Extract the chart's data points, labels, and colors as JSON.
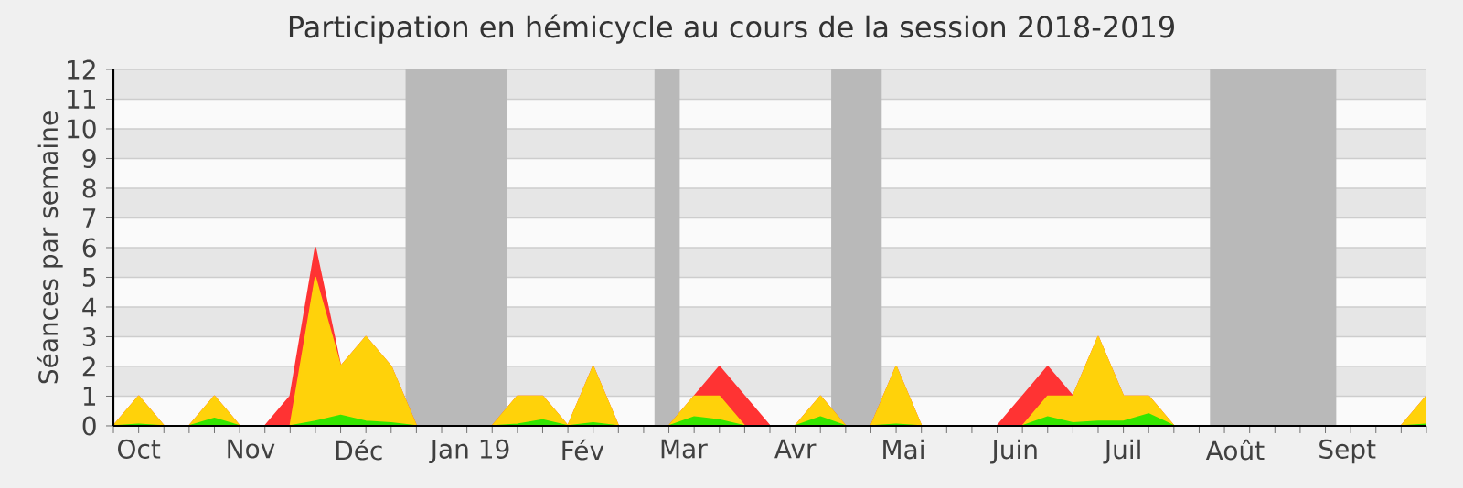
{
  "chart_data": {
    "type": "area",
    "stacked": true,
    "title": "Participation en hémicycle au cours de la session 2018-2019",
    "ylabel": "Séances par semaine",
    "x": [
      "2018-09-24",
      "2018-10-01",
      "2018-10-08",
      "2018-10-15",
      "2018-10-22",
      "2018-10-29",
      "2018-11-05",
      "2018-11-12",
      "2018-11-19",
      "2018-11-26",
      "2018-12-03",
      "2018-12-10",
      "2018-12-17",
      "2018-12-24",
      "2018-12-31",
      "2019-01-07",
      "2019-01-14",
      "2019-01-21",
      "2019-01-28",
      "2019-02-04",
      "2019-02-11",
      "2019-02-18",
      "2019-02-25",
      "2019-03-04",
      "2019-03-11",
      "2019-03-18",
      "2019-03-25",
      "2019-04-01",
      "2019-04-08",
      "2019-04-15",
      "2019-04-22",
      "2019-04-29",
      "2019-05-06",
      "2019-05-13",
      "2019-05-20",
      "2019-05-27",
      "2019-06-03",
      "2019-06-10",
      "2019-06-17",
      "2019-06-24",
      "2019-07-01",
      "2019-07-08",
      "2019-07-15",
      "2019-07-22",
      "2019-07-29",
      "2019-08-05",
      "2019-08-12",
      "2019-08-19",
      "2019-08-26",
      "2019-09-02",
      "2019-09-09",
      "2019-09-16",
      "2019-09-23"
    ],
    "series": [
      {
        "color": "#33e600",
        "values": [
          0,
          0.05,
          0,
          0,
          0.25,
          0,
          0,
          0,
          0.15,
          0.35,
          0.15,
          0.1,
          0,
          0,
          0,
          0,
          0.05,
          0.2,
          0,
          0.1,
          0,
          0,
          0,
          0.3,
          0.2,
          0,
          0,
          0,
          0.3,
          0,
          0,
          0.05,
          0,
          0,
          0,
          0,
          0,
          0.3,
          0.1,
          0.15,
          0.15,
          0.4,
          0,
          0,
          0,
          0,
          0,
          0,
          0,
          0,
          0,
          0,
          0.05
        ]
      },
      {
        "color": "#ffd20a",
        "values": [
          0,
          0.95,
          0,
          0,
          0.75,
          0,
          0,
          0,
          4.85,
          1.65,
          2.85,
          1.9,
          0,
          0,
          0,
          0,
          0.95,
          0.8,
          0,
          1.9,
          0,
          0,
          0,
          0.7,
          0.8,
          0,
          0,
          0,
          0.7,
          0,
          0,
          1.95,
          0,
          0,
          0,
          0,
          0,
          0.7,
          0.9,
          2.85,
          0.85,
          0.6,
          0,
          0,
          0,
          0,
          0,
          0,
          0,
          0,
          0,
          0,
          0.95
        ]
      },
      {
        "color": "#ff3333",
        "values": [
          0,
          0,
          0,
          0,
          0,
          0,
          0,
          1,
          1,
          0,
          0,
          0,
          0,
          0,
          0,
          0,
          0,
          0,
          0,
          0,
          0,
          0,
          0,
          0,
          1,
          1,
          0,
          0,
          0,
          0,
          0,
          0,
          0,
          0,
          0,
          0,
          1,
          1,
          0,
          0,
          0,
          0,
          0,
          0,
          0,
          0,
          0,
          0,
          0,
          0,
          0,
          0,
          0
        ]
      }
    ],
    "xlim": [
      "2018-09-24",
      "2019-09-23"
    ],
    "xticks": [
      {
        "value": "2018-10-01",
        "label": "Oct"
      },
      {
        "value": "2018-11-01",
        "label": "Nov"
      },
      {
        "value": "2018-12-01",
        "label": "Déc"
      },
      {
        "value": "2019-01-01",
        "label": "Jan 19"
      },
      {
        "value": "2019-02-01",
        "label": "Fév"
      },
      {
        "value": "2019-03-01",
        "label": "Mar"
      },
      {
        "value": "2019-04-01",
        "label": "Avr"
      },
      {
        "value": "2019-05-01",
        "label": "Mai"
      },
      {
        "value": "2019-06-01",
        "label": "Juin"
      },
      {
        "value": "2019-07-01",
        "label": "Juil"
      },
      {
        "value": "2019-08-01",
        "label": "Août"
      },
      {
        "value": "2019-09-01",
        "label": "Sept"
      }
    ],
    "ylim": [
      0,
      12
    ],
    "yticks": [
      0,
      1,
      2,
      3,
      4,
      5,
      6,
      7,
      8,
      9,
      10,
      11,
      12
    ],
    "grid": "y",
    "bands": [
      {
        "axis": "x",
        "from": "2018-12-14",
        "to": "2019-01-11",
        "color": "#b9b9b9"
      },
      {
        "axis": "x",
        "from": "2019-02-21",
        "to": "2019-02-28",
        "color": "#b9b9b9"
      },
      {
        "axis": "x",
        "from": "2019-04-11",
        "to": "2019-04-25",
        "color": "#b9b9b9"
      },
      {
        "axis": "x",
        "from": "2019-07-25",
        "to": "2019-08-29",
        "color": "#b9b9b9"
      }
    ]
  }
}
